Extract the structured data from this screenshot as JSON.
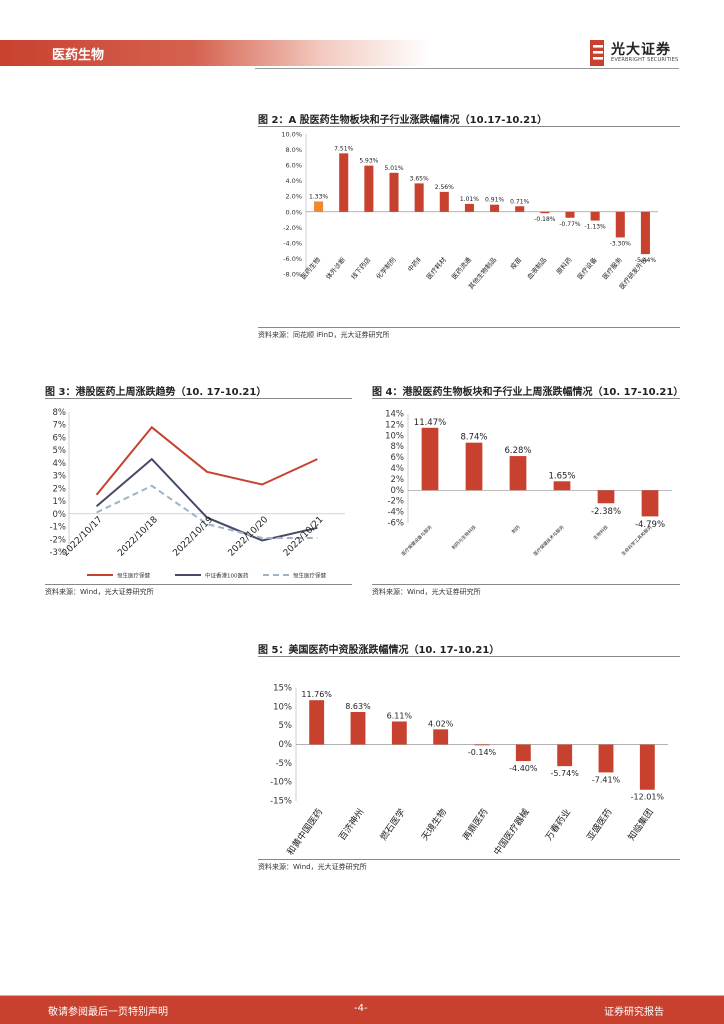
{
  "header": {
    "section": "医药生物"
  },
  "logo": {
    "name_cn": "光大证券",
    "name_en": "EVERBRIGHT SECURITIES"
  },
  "footer": {
    "left": "敬请参阅最后一页特别声明",
    "center": "-4-",
    "right": "证券研究报告"
  },
  "colors": {
    "brand": "#c8412f",
    "bar_red": "#c8412f",
    "bar_orange": "#ee8a2e",
    "line_navy": "#4a4868",
    "line_blue": "#9bb4c8"
  },
  "charts": {
    "fig2": {
      "title": "图 2：A 股医药生物板块和子行业涨跌幅情况（10.17-10.21）",
      "source": "资料来源：同花顺 iFinD，光大证券研究所"
    },
    "fig3": {
      "title": "图 3：港股医药上周涨跌趋势（10. 17-10.21）",
      "source": "资料来源：Wind，光大证券研究所"
    },
    "fig4": {
      "title": "图 4：港股医药生物板块和子行业上周涨跌幅情况（10. 17-10.21）",
      "source": "资料来源：Wind，光大证券研究所"
    },
    "fig5": {
      "title": "图 5：美国医药中资股涨跌幅情况（10. 17-10.21）",
      "source": "资料来源：Wind，光大证券研究所"
    }
  },
  "chart_data": [
    {
      "id": "fig2",
      "type": "bar",
      "categories": [
        "医药生物",
        "体外诊断",
        "线下药店",
        "化学制剂",
        "中药Ⅱ",
        "医疗耗材",
        "医药流通",
        "其他生物制品",
        "疫苗",
        "血液制品",
        "原料药",
        "医疗设备",
        "医疗服务",
        "医疗研发外包"
      ],
      "values": [
        1.33,
        7.51,
        5.93,
        5.01,
        3.65,
        2.56,
        1.01,
        0.91,
        0.71,
        -0.18,
        -0.77,
        -1.13,
        -3.3,
        -5.44
      ],
      "labels": [
        "1.33%",
        "7.51%",
        "5.93%",
        "5.01%",
        "3.65%",
        "2.56%",
        "1.01%",
        "0.91%",
        "0.71%",
        "-0.18%",
        "-0.77%",
        "-1.13%",
        "-3.30%",
        "-5.44%"
      ],
      "highlight_index": 0,
      "yticks": [
        "10.0%",
        "8.0%",
        "6.0%",
        "4.0%",
        "2.0%",
        "0.0%",
        "-2.0%",
        "-4.0%",
        "-6.0%",
        "-8.0%"
      ],
      "ylim": [
        -8,
        10
      ]
    },
    {
      "id": "fig3",
      "type": "line",
      "x": [
        "2022/10/17",
        "2022/10/18",
        "2022/10/19",
        "2022/10/20",
        "2022/10/21"
      ],
      "series": [
        {
          "name": "恒生医疗保健",
          "values": [
            1.5,
            6.8,
            3.3,
            2.3,
            4.3
          ]
        },
        {
          "name": "中证香港100医药",
          "values": [
            0.6,
            4.3,
            -0.3,
            -2.1,
            -1.1
          ]
        },
        {
          "name": "恒生医疗保健",
          "values": [
            0.1,
            2.2,
            -0.8,
            -1.9,
            -1.9
          ]
        }
      ],
      "yticks": [
        "8%",
        "7%",
        "6%",
        "5%",
        "4%",
        "3%",
        "2%",
        "1%",
        "0%",
        "-1%",
        "-2%",
        "-3%"
      ],
      "ylim": [
        -3,
        8
      ]
    },
    {
      "id": "fig4",
      "type": "bar",
      "categories": [
        "医疗保健设备与服务",
        "制药与生物科技",
        "制药",
        "医疗保健技术与服务",
        "生物科技",
        "生命科学工具和服务"
      ],
      "values": [
        11.47,
        8.74,
        6.28,
        1.65,
        -2.38,
        -4.79
      ],
      "labels": [
        "11.47%",
        "8.74%",
        "6.28%",
        "1.65%",
        "-2.38%",
        "-4.79%"
      ],
      "yticks": [
        "14%",
        "12%",
        "10%",
        "8%",
        "6%",
        "4%",
        "2%",
        "0%",
        "-2%",
        "-4%",
        "-6%"
      ],
      "ylim": [
        -6,
        14
      ]
    },
    {
      "id": "fig5",
      "type": "bar",
      "categories": [
        "和黄中国医药",
        "百济神州",
        "燃石医学",
        "天境生物",
        "再鼎医药",
        "中国医疗器械",
        "万春药业",
        "亚盛医药",
        "知临集团"
      ],
      "values": [
        11.76,
        8.63,
        6.11,
        4.02,
        -0.14,
        -4.4,
        -5.74,
        -7.41,
        -12.01
      ],
      "labels": [
        "11.76%",
        "8.63%",
        "6.11%",
        "4.02%",
        "-0.14%",
        "-4.40%",
        "-5.74%",
        "-7.41%",
        "-12.01%"
      ],
      "yticks": [
        "15%",
        "10%",
        "5%",
        "0%",
        "-5%",
        "-10%",
        "-15%"
      ],
      "ylim": [
        -15,
        15
      ]
    }
  ]
}
